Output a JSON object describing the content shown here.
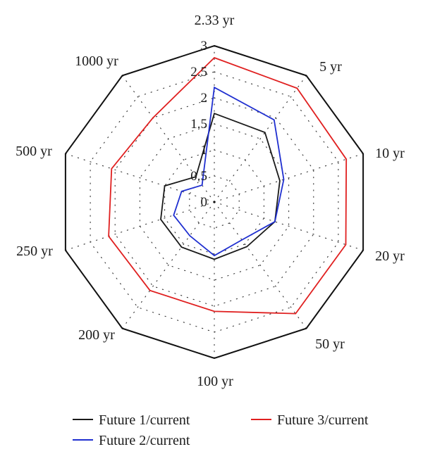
{
  "chart_data": {
    "type": "radar",
    "categories": [
      "2.33 yr",
      "5 yr",
      "10 yr",
      "20 yr",
      "50 yr",
      "100 yr",
      "200 yr",
      "250 yr",
      "500 yr",
      "1000 yr"
    ],
    "rlim": [
      0,
      3
    ],
    "ticks": [
      0,
      0.5,
      1,
      1.5,
      2,
      2.5,
      3
    ],
    "tick_labels": [
      "0",
      "0.5",
      "1",
      "1.5",
      "2",
      "2.5",
      "3"
    ],
    "grid": true,
    "legend_position": "bottom",
    "series": [
      {
        "name": "Future 1/current",
        "color": "#1a1a1a",
        "values": [
          1.7,
          1.65,
          1.32,
          1.22,
          1.06,
          1.1,
          1.07,
          1.08,
          1.0,
          0.6
        ]
      },
      {
        "name": "Future 2/current",
        "color": "#1f2fd0",
        "values": [
          2.2,
          1.95,
          1.4,
          1.22,
          0.9,
          1.03,
          0.8,
          0.82,
          0.66,
          0.4
        ]
      },
      {
        "name": "Future 3/current",
        "color": "#e02020",
        "values": [
          2.77,
          2.7,
          2.66,
          2.65,
          2.65,
          2.1,
          2.1,
          2.13,
          2.07,
          2.0
        ]
      }
    ]
  }
}
